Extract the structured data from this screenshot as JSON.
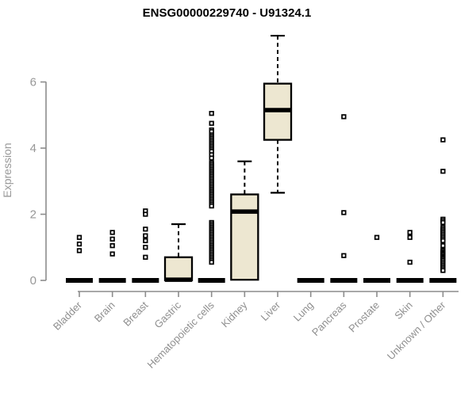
{
  "chart_data": {
    "type": "box",
    "title": "ENSG00000229740 - U91324.1",
    "xlabel": "",
    "ylabel": "Expression",
    "yticks": [
      0,
      2,
      4,
      6
    ],
    "ylim": [
      0,
      7.5
    ],
    "grid": false,
    "legend": "none",
    "categories": [
      "Bladder",
      "Brain",
      "Breast",
      "Gastric",
      "Hematopoietic cells",
      "Kidney",
      "Liver",
      "Lung",
      "Pancreas",
      "Prostate",
      "Skin",
      "Unknown / Other"
    ],
    "boxes": [
      {
        "category": "Bladder",
        "median": 0,
        "q1": 0,
        "q3": 0,
        "whisker_low": 0,
        "whisker_high": 0,
        "outliers": [
          1.3,
          1.1,
          0.9
        ]
      },
      {
        "category": "Brain",
        "median": 0,
        "q1": 0,
        "q3": 0,
        "whisker_low": 0,
        "whisker_high": 0,
        "outliers": [
          1.45,
          1.25,
          1.05,
          0.8
        ]
      },
      {
        "category": "Breast",
        "median": 0,
        "q1": 0,
        "q3": 0,
        "whisker_low": 0,
        "whisker_high": 0,
        "outliers": [
          2.1,
          2.0,
          1.55,
          1.35,
          1.2,
          1.0,
          0.7
        ]
      },
      {
        "category": "Gastric",
        "median": 0.02,
        "q1": 0,
        "q3": 0.7,
        "whisker_low": 0,
        "whisker_high": 1.7,
        "outliers": []
      },
      {
        "category": "Hematopoietic cells",
        "median": 0,
        "q1": 0,
        "q3": 0,
        "whisker_low": 0,
        "whisker_high": 0,
        "outliers": [
          5.05,
          4.75,
          4.55,
          4.5,
          4.4,
          4.35,
          4.3,
          4.25,
          4.2,
          4.15,
          4.1,
          4.05,
          4.0,
          3.95,
          3.9,
          3.8,
          3.7,
          3.55,
          3.5,
          3.45,
          3.4,
          3.35,
          3.3,
          3.25,
          3.2,
          3.15,
          3.1,
          3.05,
          3.0,
          2.95,
          2.9,
          2.85,
          2.8,
          2.75,
          2.7,
          2.65,
          2.6,
          2.55,
          2.5,
          2.45,
          2.4,
          2.35,
          2.3,
          2.25,
          1.75,
          1.7,
          1.65,
          1.6,
          1.55,
          1.5,
          1.45,
          1.4,
          1.35,
          1.3,
          1.25,
          1.2,
          1.15,
          1.1,
          1.05,
          1.0,
          0.95,
          0.9,
          0.85,
          0.8,
          0.75,
          0.7,
          0.65,
          0.6,
          0.55
        ]
      },
      {
        "category": "Kidney",
        "median": 2.08,
        "q1": 0.02,
        "q3": 2.6,
        "whisker_low": 0.02,
        "whisker_high": 3.6,
        "outliers": []
      },
      {
        "category": "Liver",
        "median": 5.15,
        "q1": 4.25,
        "q3": 5.95,
        "whisker_low": 2.65,
        "whisker_high": 7.4,
        "outliers": []
      },
      {
        "category": "Lung",
        "median": 0,
        "q1": 0,
        "q3": 0,
        "whisker_low": 0,
        "whisker_high": 0,
        "outliers": []
      },
      {
        "category": "Pancreas",
        "median": 0,
        "q1": 0,
        "q3": 0,
        "whisker_low": 0,
        "whisker_high": 0,
        "outliers": [
          4.95,
          2.05,
          0.75
        ]
      },
      {
        "category": "Prostate",
        "median": 0,
        "q1": 0,
        "q3": 0,
        "whisker_low": 0,
        "whisker_high": 0,
        "outliers": [
          1.3
        ]
      },
      {
        "category": "Skin",
        "median": 0,
        "q1": 0,
        "q3": 0,
        "whisker_low": 0,
        "whisker_high": 0,
        "outliers": [
          1.45,
          1.3,
          0.55
        ]
      },
      {
        "category": "Unknown / Other",
        "median": 0,
        "q1": 0,
        "q3": 0,
        "whisker_low": 0,
        "whisker_high": 0,
        "outliers": [
          4.25,
          3.3,
          1.85,
          1.8,
          1.75,
          1.6,
          1.55,
          1.5,
          1.45,
          1.4,
          1.35,
          1.3,
          1.25,
          1.2,
          1.05,
          0.92,
          0.88,
          0.84,
          0.8,
          0.76,
          0.72,
          0.68,
          0.64,
          0.6,
          0.55,
          0.5,
          0.45,
          0.4,
          0.35,
          0.3
        ]
      }
    ],
    "colors": {
      "box_fill": "#EDE7D1",
      "box_border": "#000000",
      "median": "#000000",
      "whisker": "#000000",
      "outlier_stroke": "#000000",
      "outlier_fill": "#FFFFFF",
      "axis": "#8C8C8C",
      "tick_label": "#979797",
      "title": "#000000",
      "background": "#FFFFFF"
    }
  }
}
